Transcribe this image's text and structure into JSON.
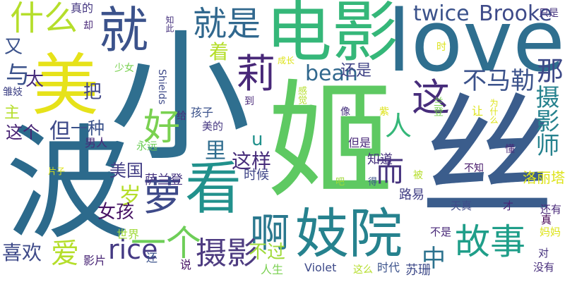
{
  "words": [
    {
      "text": "小",
      "color": "#2f6f8f"
    },
    {
      "text": "姬",
      "color": "#5ec962"
    },
    {
      "text": "丝",
      "color": "#3b5d8c"
    },
    {
      "text": "波",
      "color": "#2c6a8c"
    },
    {
      "text": "love",
      "color": "#2f6f8f"
    },
    {
      "text": "电影",
      "color": "#35b779"
    },
    {
      "text": "美",
      "color": "#e6e21a"
    },
    {
      "text": "就",
      "color": "#3b528b"
    },
    {
      "text": "看",
      "color": "#21918c"
    },
    {
      "text": "妓院",
      "color": "#26828e"
    },
    {
      "text": "故事",
      "color": "#1f9e89"
    },
    {
      "text": "萝",
      "color": "#3e4a89"
    },
    {
      "text": "啊",
      "color": "#2a788e"
    },
    {
      "text": "莉",
      "color": "#482878"
    },
    {
      "text": "就是",
      "color": "#31688e"
    },
    {
      "text": "什么",
      "color": "#b5de2b"
    },
    {
      "text": "摄影",
      "color": "#4e3c81"
    },
    {
      "text": "一个",
      "color": "#6ece58"
    },
    {
      "text": "twice",
      "color": "#3b528b"
    },
    {
      "text": "Brooke",
      "color": "#3e4a89"
    },
    {
      "text": "bean",
      "color": "#31688e"
    },
    {
      "text": "这",
      "color": "#472d7b"
    },
    {
      "text": "人",
      "color": "#35b779"
    },
    {
      "text": "好",
      "color": "#7ad151"
    },
    {
      "text": "不马勒",
      "color": "#3b528b"
    },
    {
      "text": "那",
      "color": "#3e4a89"
    },
    {
      "text": "摄影师",
      "color": "#26828e"
    },
    {
      "text": "而",
      "color": "#46337e"
    },
    {
      "text": "rice",
      "color": "#443983"
    },
    {
      "text": "爱",
      "color": "#b5de2b"
    },
    {
      "text": "中",
      "color": "#2c728e"
    },
    {
      "text": "着",
      "color": "#b5de2b"
    },
    {
      "text": "里",
      "color": "#2f6c8e"
    },
    {
      "text": "这样",
      "color": "#472d7b"
    },
    {
      "text": "还是",
      "color": "#414487"
    },
    {
      "text": "与",
      "color": "#3b528b"
    },
    {
      "text": "把",
      "color": "#404688"
    },
    {
      "text": "岁",
      "color": "#b5de2b"
    },
    {
      "text": "美国",
      "color": "#433e85"
    },
    {
      "text": "女孩",
      "color": "#471365"
    },
    {
      "text": "喜欢",
      "color": "#3e4a89"
    },
    {
      "text": "不过",
      "color": "#a0da39"
    },
    {
      "text": "一种",
      "color": "#3b528b"
    },
    {
      "text": "太",
      "color": "#472d7b"
    },
    {
      "text": "但",
      "color": "#3e4a89"
    },
    {
      "text": "这个",
      "color": "#482475"
    },
    {
      "text": "又",
      "color": "#3b528b"
    },
    {
      "text": "主",
      "color": "#b5de2b"
    },
    {
      "text": "u",
      "color": "#21918c"
    },
    {
      "text": "苏珊",
      "color": "#3e4a89"
    },
    {
      "text": "真的",
      "color": "#453781"
    },
    {
      "text": "只是",
      "color": "#46337e"
    },
    {
      "text": "知道",
      "color": "#46327e"
    },
    {
      "text": "但是",
      "color": "#482878"
    },
    {
      "text": "路易",
      "color": "#424086"
    },
    {
      "text": "洛丽塔",
      "color": "#dde318"
    },
    {
      "text": "萨兰登",
      "color": "#463480"
    },
    {
      "text": "时候",
      "color": "#404688"
    },
    {
      "text": "男人",
      "color": "#482878"
    },
    {
      "text": "孩子",
      "color": "#3b528b"
    },
    {
      "text": "美的",
      "color": "#453781"
    },
    {
      "text": "永远",
      "color": "#6ece58"
    },
    {
      "text": "世界",
      "color": "#a0da39"
    },
    {
      "text": "人生",
      "color": "#7ad151"
    },
    {
      "text": "Violet",
      "color": "#3e4a89"
    },
    {
      "text": "时代",
      "color": "#3b528b"
    },
    {
      "text": "这么",
      "color": "#b5de2b"
    },
    {
      "text": "影片",
      "color": "#482475"
    },
    {
      "text": "还",
      "color": "#3b528b"
    },
    {
      "text": "说",
      "color": "#471365"
    },
    {
      "text": "天真",
      "color": "#3e4a89"
    },
    {
      "text": "还有",
      "color": "#482878"
    },
    {
      "text": "妈妈",
      "color": "#dde318"
    },
    {
      "text": "对",
      "color": "#46327e"
    },
    {
      "text": "没有",
      "color": "#472d7b"
    },
    {
      "text": "不是",
      "color": "#482878"
    },
    {
      "text": "才",
      "color": "#482475"
    },
    {
      "text": "真",
      "color": "#440154"
    },
    {
      "text": "不知",
      "color": "#481a6c"
    },
    {
      "text": "被",
      "color": "#b5de2b"
    },
    {
      "text": "吧",
      "color": "#a0da39"
    },
    {
      "text": "得",
      "color": "#3b528b"
    },
    {
      "text": "懂",
      "color": "#482878"
    },
    {
      "text": "让",
      "color": "#dde318"
    },
    {
      "text": "像",
      "color": "#46327e"
    },
    {
      "text": "紫",
      "color": "#dde318"
    },
    {
      "text": "给",
      "color": "#472d7b"
    },
    {
      "text": "到",
      "color": "#482878"
    },
    {
      "text": "感觉",
      "color": "#b5de2b"
    },
    {
      "text": "兰登",
      "color": "#7ad151"
    },
    {
      "text": "为什么",
      "color": "#dde318"
    },
    {
      "text": "时",
      "color": "#dde318"
    },
    {
      "text": "成长",
      "color": "#dde318"
    },
    {
      "text": "Shields",
      "color": "#3e4a89"
    },
    {
      "text": "少女",
      "color": "#7ad151"
    },
    {
      "text": "雏妓",
      "color": "#414487"
    },
    {
      "text": "知此",
      "color": "#46327e"
    },
    {
      "text": "却",
      "color": "#482878"
    },
    {
      "text": "片子",
      "color": "#dde318"
    }
  ]
}
